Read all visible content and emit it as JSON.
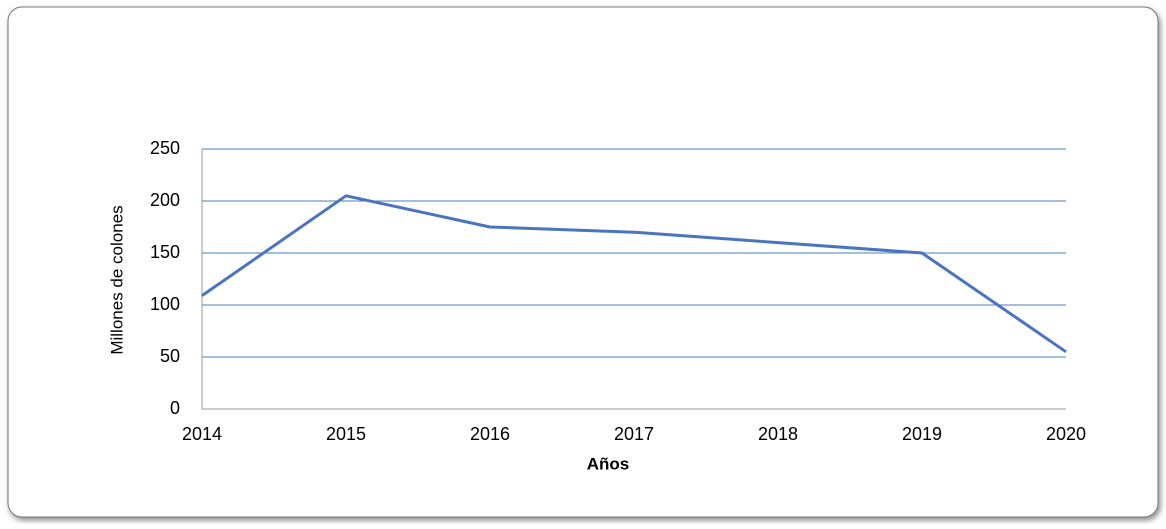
{
  "chart_data": {
    "type": "line",
    "x": [
      2014,
      2015,
      2016,
      2017,
      2018,
      2019,
      2020
    ],
    "series": [
      {
        "name": "Millones de colones",
        "color": "#4a74c0",
        "values": [
          109,
          205,
          175,
          170,
          160,
          150,
          55
        ]
      }
    ],
    "xlabel": "Años",
    "ylabel": "Millones de colones",
    "xlim": [
      2014,
      2020
    ],
    "xticks": [
      2014,
      2015,
      2016,
      2017,
      2018,
      2019,
      2020
    ],
    "ylim": [
      0,
      250
    ],
    "yticks": [
      0,
      50,
      100,
      150,
      200,
      250
    ],
    "grid": true,
    "grid_color": "#4a7ebb"
  }
}
